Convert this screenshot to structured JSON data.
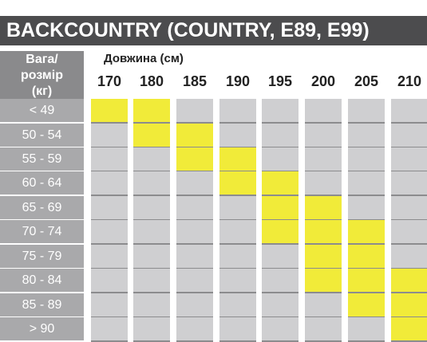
{
  "title": "BACKCOUNTRY (COUNTRY, E89, E99)",
  "weight_header": [
    "Вага/",
    "розмір",
    "(кг)"
  ],
  "length_title": "Довжина (см)",
  "lengths": [
    "170",
    "180",
    "185",
    "190",
    "195",
    "200",
    "205",
    "210"
  ],
  "weights": [
    "< 49",
    "50 - 54",
    "55 - 59",
    "60 - 64",
    "65 - 69",
    "70 - 74",
    "75 - 79",
    "80 - 84",
    "85 - 89",
    "> 90"
  ],
  "highlight_color": "#f1eb39",
  "grid": [
    [
      1,
      1,
      0,
      0,
      0,
      0,
      0,
      0
    ],
    [
      0,
      1,
      1,
      0,
      0,
      0,
      0,
      0
    ],
    [
      0,
      0,
      1,
      1,
      0,
      0,
      0,
      0
    ],
    [
      0,
      0,
      0,
      1,
      1,
      0,
      0,
      0
    ],
    [
      0,
      0,
      0,
      0,
      1,
      1,
      0,
      0
    ],
    [
      0,
      0,
      0,
      0,
      1,
      1,
      1,
      0
    ],
    [
      0,
      0,
      0,
      0,
      0,
      1,
      1,
      0
    ],
    [
      0,
      0,
      0,
      0,
      0,
      1,
      1,
      1
    ],
    [
      0,
      0,
      0,
      0,
      0,
      0,
      1,
      1
    ],
    [
      0,
      0,
      0,
      0,
      0,
      0,
      0,
      1
    ]
  ]
}
